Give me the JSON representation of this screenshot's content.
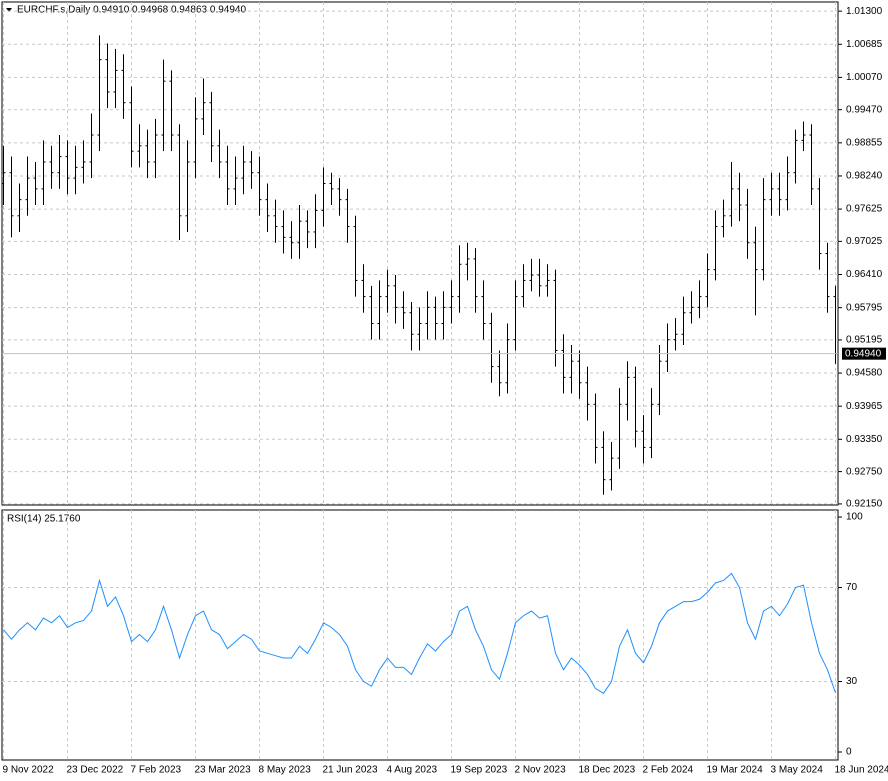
{
  "chart_data": [
    {
      "type": "ohlc",
      "title": "EURCHF.s,Daily  0.94910 0.94968 0.94863 0.94940",
      "categories": [
        "9 Nov 2022",
        null,
        null,
        null,
        null,
        null,
        null,
        null,
        "23 Dec 2022",
        null,
        null,
        null,
        null,
        null,
        null,
        null,
        "7 Feb 2023",
        null,
        null,
        null,
        null,
        null,
        null,
        null,
        "23 Mar 2023",
        null,
        null,
        null,
        null,
        null,
        null,
        null,
        "8 May 2023",
        null,
        null,
        null,
        null,
        null,
        null,
        null,
        "21 Jun 2023",
        null,
        null,
        null,
        null,
        null,
        null,
        null,
        "4 Aug 2023",
        null,
        null,
        null,
        null,
        null,
        null,
        null,
        "19 Sep 2023",
        null,
        null,
        null,
        null,
        null,
        null,
        null,
        "2 Nov 2023",
        null,
        null,
        null,
        null,
        null,
        null,
        null,
        "18 Dec 2023",
        null,
        null,
        null,
        null,
        null,
        null,
        null,
        "2 Feb 2024",
        null,
        null,
        null,
        null,
        null,
        null,
        null,
        "19 Mar 2024",
        null,
        null,
        null,
        null,
        null,
        null,
        null,
        "3 May 2024",
        null,
        null,
        null,
        null,
        null,
        null,
        null,
        "18 Jun 2024"
      ],
      "open": [
        0.981,
        0.983,
        0.975,
        0.978,
        0.982,
        0.98,
        0.985,
        0.983,
        0.986,
        0.982,
        0.984,
        0.985,
        0.99,
        1.004,
        0.998,
        1.002,
        0.996,
        0.987,
        0.988,
        0.985,
        0.99,
        1.0,
        0.99,
        0.975,
        0.985,
        0.993,
        0.996,
        0.988,
        0.985,
        0.98,
        0.982,
        0.985,
        0.983,
        0.978,
        0.975,
        0.973,
        0.971,
        0.97,
        0.974,
        0.972,
        0.976,
        0.981,
        0.98,
        0.978,
        0.973,
        0.963,
        0.96,
        0.955,
        0.96,
        0.962,
        0.958,
        0.957,
        0.953,
        0.955,
        0.958,
        0.955,
        0.958,
        0.96,
        0.966,
        0.967,
        0.96,
        0.955,
        0.947,
        0.944,
        0.952,
        0.96,
        0.963,
        0.964,
        0.962,
        0.963,
        0.95,
        0.945,
        0.948,
        0.944,
        0.94,
        0.932,
        0.926,
        0.93,
        0.94,
        0.945,
        0.935,
        0.932,
        0.94,
        0.948,
        0.952,
        0.953,
        0.957,
        0.958,
        0.96,
        0.965,
        0.973,
        0.975,
        0.98,
        0.977,
        0.97,
        0.965,
        0.978,
        0.98,
        0.978,
        0.983,
        0.989,
        0.99,
        0.98,
        0.968,
        0.96
      ],
      "high": [
        0.988,
        0.986,
        0.981,
        0.986,
        0.985,
        0.989,
        0.988,
        0.99,
        0.989,
        0.988,
        0.989,
        0.994,
        1.0085,
        1.007,
        1.006,
        1.005,
        0.999,
        0.992,
        0.991,
        0.993,
        1.004,
        1.002,
        0.992,
        0.989,
        0.997,
        1.0005,
        0.998,
        0.991,
        0.988,
        0.986,
        0.988,
        0.987,
        0.986,
        0.981,
        0.978,
        0.976,
        0.974,
        0.977,
        0.976,
        0.979,
        0.984,
        0.983,
        0.982,
        0.98,
        0.975,
        0.966,
        0.962,
        0.963,
        0.965,
        0.964,
        0.961,
        0.959,
        0.958,
        0.961,
        0.96,
        0.961,
        0.963,
        0.9695,
        0.97,
        0.969,
        0.963,
        0.957,
        0.95,
        0.955,
        0.963,
        0.966,
        0.967,
        0.967,
        0.966,
        0.965,
        0.953,
        0.951,
        0.95,
        0.947,
        0.942,
        0.935,
        0.933,
        0.943,
        0.948,
        0.947,
        0.938,
        0.943,
        0.951,
        0.955,
        0.956,
        0.96,
        0.961,
        0.963,
        0.968,
        0.976,
        0.978,
        0.985,
        0.983,
        0.98,
        0.973,
        0.982,
        0.983,
        0.983,
        0.986,
        0.991,
        0.9925,
        0.992,
        0.982,
        0.97,
        0.962
      ],
      "low": [
        0.977,
        0.971,
        0.972,
        0.975,
        0.977,
        0.977,
        0.98,
        0.98,
        0.979,
        0.979,
        0.981,
        0.982,
        0.987,
        0.995,
        0.995,
        0.993,
        0.984,
        0.984,
        0.982,
        0.982,
        0.987,
        0.987,
        0.9705,
        0.972,
        0.982,
        0.99,
        0.985,
        0.982,
        0.977,
        0.977,
        0.979,
        0.98,
        0.975,
        0.972,
        0.97,
        0.968,
        0.967,
        0.967,
        0.969,
        0.969,
        0.973,
        0.977,
        0.975,
        0.97,
        0.96,
        0.957,
        0.952,
        0.952,
        0.957,
        0.955,
        0.954,
        0.95,
        0.95,
        0.952,
        0.952,
        0.952,
        0.955,
        0.957,
        0.963,
        0.957,
        0.952,
        0.944,
        0.9415,
        0.942,
        0.95,
        0.958,
        0.961,
        0.96,
        0.96,
        0.947,
        0.942,
        0.942,
        0.941,
        0.937,
        0.929,
        0.9232,
        0.924,
        0.928,
        0.937,
        0.932,
        0.929,
        0.93,
        0.938,
        0.946,
        0.95,
        0.951,
        0.955,
        0.956,
        0.958,
        0.963,
        0.971,
        0.973,
        0.974,
        0.967,
        0.9565,
        0.963,
        0.975,
        0.975,
        0.976,
        0.981,
        0.987,
        0.977,
        0.965,
        0.957,
        0.9475
      ],
      "close": [
        0.983,
        0.975,
        0.978,
        0.982,
        0.98,
        0.985,
        0.983,
        0.986,
        0.982,
        0.984,
        0.985,
        0.99,
        1.004,
        0.998,
        1.002,
        0.996,
        0.987,
        0.988,
        0.985,
        0.99,
        1.0,
        0.99,
        0.975,
        0.985,
        0.993,
        0.996,
        0.988,
        0.985,
        0.98,
        0.982,
        0.985,
        0.983,
        0.978,
        0.975,
        0.973,
        0.971,
        0.97,
        0.974,
        0.972,
        0.976,
        0.981,
        0.98,
        0.978,
        0.973,
        0.963,
        0.96,
        0.955,
        0.96,
        0.962,
        0.958,
        0.957,
        0.953,
        0.955,
        0.958,
        0.955,
        0.958,
        0.96,
        0.966,
        0.967,
        0.96,
        0.955,
        0.947,
        0.944,
        0.952,
        0.96,
        0.963,
        0.964,
        0.962,
        0.963,
        0.95,
        0.945,
        0.948,
        0.944,
        0.94,
        0.932,
        0.926,
        0.93,
        0.94,
        0.945,
        0.935,
        0.932,
        0.94,
        0.948,
        0.952,
        0.953,
        0.957,
        0.958,
        0.96,
        0.965,
        0.973,
        0.975,
        0.98,
        0.977,
        0.97,
        0.965,
        0.978,
        0.98,
        0.978,
        0.983,
        0.989,
        0.99,
        0.98,
        0.968,
        0.96,
        0.9494
      ],
      "color": "#000000",
      "ylim": [
        0.9213,
        1.0147
      ],
      "yticks": [
        {
          "value": 1.013,
          "label": "1.01300"
        },
        {
          "value": 1.00685,
          "label": "1.00685"
        },
        {
          "value": 1.0007,
          "label": "1.00070"
        },
        {
          "value": 0.9947,
          "label": "0.99470"
        },
        {
          "value": 0.98855,
          "label": "0.98855"
        },
        {
          "value": 0.9824,
          "label": "0.98240"
        },
        {
          "value": 0.97625,
          "label": "0.97625"
        },
        {
          "value": 0.97025,
          "label": "0.97025"
        },
        {
          "value": 0.9641,
          "label": "0.96410"
        },
        {
          "value": 0.95795,
          "label": "0.95795"
        },
        {
          "value": 0.95195,
          "label": "0.95195"
        },
        {
          "value": 0.9458,
          "label": "0.94580"
        },
        {
          "value": 0.93965,
          "label": "0.93965"
        },
        {
          "value": 0.9335,
          "label": "0.93350"
        },
        {
          "value": 0.9275,
          "label": "0.92750"
        },
        {
          "value": 0.9215,
          "label": "0.92150"
        }
      ],
      "price_line": {
        "value": 0.9494,
        "label": "0.94940"
      },
      "grid": true
    },
    {
      "type": "line",
      "title": "RSI(14) 25.1760",
      "series": [
        {
          "name": "RSI(14)",
          "color": "#1e90ff",
          "values": [
            52,
            48,
            52,
            55,
            52,
            57,
            55,
            58,
            53,
            55,
            56,
            60,
            73,
            62,
            66,
            58,
            47,
            50,
            47,
            52,
            62,
            52,
            40,
            50,
            58,
            60,
            52,
            50,
            44,
            47,
            50,
            48,
            43,
            42,
            41,
            40,
            40,
            45,
            42,
            48,
            55,
            53,
            50,
            45,
            35,
            30,
            28,
            35,
            40,
            36,
            36,
            33,
            40,
            46,
            43,
            47,
            50,
            60,
            62,
            52,
            45,
            35,
            31,
            42,
            55,
            58,
            60,
            57,
            58,
            42,
            35,
            40,
            37,
            33,
            27,
            25,
            30,
            45,
            52,
            42,
            38,
            45,
            55,
            60,
            62,
            64,
            64,
            65,
            68,
            72,
            73,
            76,
            70,
            55,
            48,
            60,
            62,
            58,
            63,
            70,
            71,
            55,
            42,
            35,
            25.176
          ]
        }
      ],
      "ylim": [
        -3.4,
        103
      ],
      "yticks": [
        100,
        70,
        30,
        0
      ],
      "grid": true
    }
  ]
}
